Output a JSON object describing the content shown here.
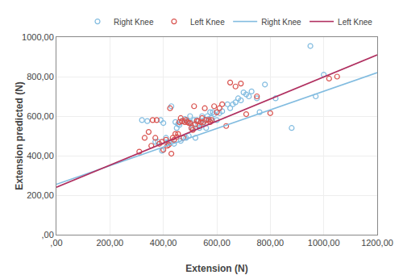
{
  "chart_data": {
    "type": "scatter",
    "xlabel": "Extension (N)",
    "ylabel": "Extension predicted (N)",
    "xlim": [
      0,
      1200
    ],
    "ylim": [
      0,
      1000
    ],
    "xticks": [
      {
        "value": 0,
        "label": ",00"
      },
      {
        "value": 200,
        "label": "200,00"
      },
      {
        "value": 400,
        "label": "400,00"
      },
      {
        "value": 600,
        "label": "600,00"
      },
      {
        "value": 800,
        "label": "800,00"
      },
      {
        "value": 1000,
        "label": "1000,00"
      },
      {
        "value": 1200,
        "label": "1200,00"
      }
    ],
    "yticks": [
      {
        "value": 0,
        "label": ",00"
      },
      {
        "value": 200,
        "label": "200,00"
      },
      {
        "value": 400,
        "label": "400,00"
      },
      {
        "value": 600,
        "label": "600,00"
      },
      {
        "value": 800,
        "label": "800,00"
      },
      {
        "value": 1000,
        "label": "1000,00"
      }
    ],
    "grid": true,
    "legend": "upper right",
    "series": [
      {
        "name": "Right Knee",
        "type": "scatter",
        "marker": "open circle",
        "color": "#82bce0",
        "x": [
          320,
          340,
          370,
          380,
          390,
          395,
          400,
          410,
          415,
          420,
          430,
          440,
          445,
          450,
          455,
          460,
          465,
          470,
          475,
          480,
          485,
          490,
          495,
          500,
          500,
          505,
          510,
          515,
          520,
          525,
          530,
          535,
          540,
          545,
          550,
          555,
          560,
          565,
          570,
          575,
          580,
          585,
          590,
          600,
          610,
          620,
          640,
          650,
          660,
          670,
          680,
          690,
          700,
          710,
          720,
          730,
          750,
          760,
          780,
          820,
          880,
          950,
          970,
          1000
        ],
        "values": [
          580,
          575,
          470,
          470,
          580,
          425,
          565,
          490,
          465,
          470,
          650,
          460,
          570,
          540,
          560,
          555,
          475,
          575,
          490,
          585,
          490,
          575,
          500,
          570,
          600,
          540,
          540,
          580,
          490,
          580,
          555,
          540,
          570,
          600,
          565,
          580,
          540,
          600,
          585,
          620,
          590,
          620,
          610,
          580,
          615,
          625,
          660,
          640,
          660,
          670,
          690,
          680,
          720,
          710,
          700,
          725,
          690,
          620,
          760,
          690,
          540,
          955,
          700,
          810
        ]
      },
      {
        "name": "Left Knee",
        "type": "scatter",
        "marker": "open circle",
        "color": "#d9534f",
        "x": [
          310,
          330,
          345,
          355,
          360,
          370,
          375,
          385,
          395,
          400,
          410,
          415,
          420,
          425,
          430,
          435,
          440,
          445,
          450,
          455,
          460,
          465,
          470,
          475,
          480,
          485,
          490,
          495,
          500,
          505,
          510,
          515,
          520,
          525,
          530,
          535,
          540,
          545,
          550,
          555,
          560,
          570,
          575,
          580,
          590,
          600,
          610,
          620,
          635,
          650,
          670,
          690,
          710,
          750,
          800,
          1020,
          1050
        ],
        "values": [
          420,
          490,
          520,
          450,
          580,
          490,
          580,
          460,
          470,
          430,
          480,
          450,
          455,
          640,
          410,
          490,
          480,
          510,
          495,
          510,
          570,
          590,
          575,
          490,
          570,
          580,
          570,
          565,
          565,
          540,
          530,
          650,
          560,
          575,
          575,
          550,
          570,
          590,
          570,
          640,
          580,
          580,
          570,
          580,
          650,
          620,
          640,
          660,
          550,
          770,
          750,
          765,
          610,
          700,
          615,
          790,
          800
        ]
      },
      {
        "name": "Right Knee",
        "type": "line",
        "line_style": "solid",
        "color": "#82bce0",
        "x": [
          0,
          1200
        ],
        "values": [
          255,
          820
        ]
      },
      {
        "name": "Left Knee",
        "type": "line",
        "line_style": "solid",
        "color": "#b03060",
        "x": [
          0,
          1200
        ],
        "values": [
          240,
          910
        ]
      }
    ]
  }
}
